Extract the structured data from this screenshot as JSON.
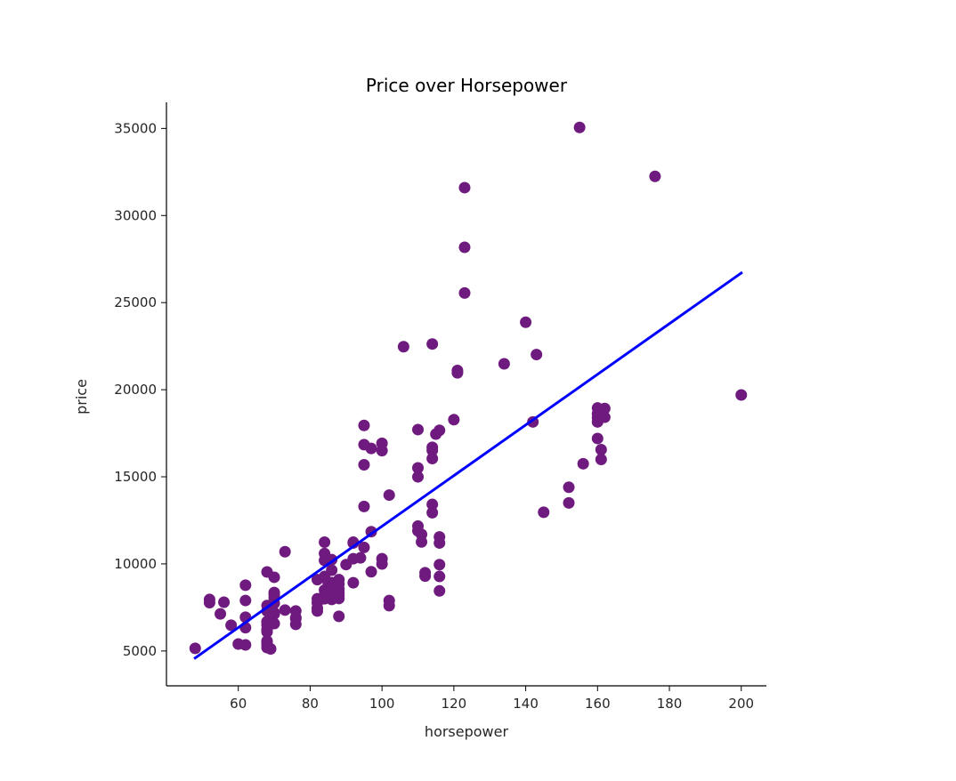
{
  "chart_data": {
    "type": "scatter",
    "title": "Price over Horsepower",
    "xlabel": "horsepower",
    "ylabel": "price",
    "xlim": [
      40,
      207
    ],
    "ylim": [
      3000,
      36500
    ],
    "xticks": [
      60,
      80,
      100,
      120,
      140,
      160,
      180,
      200
    ],
    "yticks": [
      5000,
      10000,
      15000,
      20000,
      25000,
      30000,
      35000
    ],
    "grid": false,
    "point_color": "#6f1a7e",
    "line_color": "#0000ff",
    "points": [
      [
        48,
        5151
      ],
      [
        52,
        7957
      ],
      [
        52,
        7775
      ],
      [
        55,
        7129
      ],
      [
        56,
        7799
      ],
      [
        58,
        6479
      ],
      [
        60,
        5399
      ],
      [
        62,
        5348
      ],
      [
        62,
        6338
      ],
      [
        62,
        6938
      ],
      [
        62,
        7898
      ],
      [
        62,
        8778
      ],
      [
        68,
        5195
      ],
      [
        68,
        5389
      ],
      [
        68,
        5499
      ],
      [
        68,
        5572
      ],
      [
        68,
        6095
      ],
      [
        68,
        6229
      ],
      [
        68,
        6488
      ],
      [
        68,
        6669
      ],
      [
        68,
        6692
      ],
      [
        68,
        7295
      ],
      [
        68,
        7609
      ],
      [
        68,
        9538
      ],
      [
        69,
        5118
      ],
      [
        69,
        6649
      ],
      [
        69,
        6795
      ],
      [
        69,
        6849
      ],
      [
        69,
        7053
      ],
      [
        70,
        6575
      ],
      [
        70,
        7126
      ],
      [
        70,
        7198
      ],
      [
        70,
        7738
      ],
      [
        70,
        8058
      ],
      [
        70,
        8238
      ],
      [
        70,
        9233
      ],
      [
        70,
        8358
      ],
      [
        73,
        7349
      ],
      [
        73,
        10698
      ],
      [
        76,
        6855
      ],
      [
        76,
        6918
      ],
      [
        76,
        7299
      ],
      [
        76,
        6529
      ],
      [
        82,
        7295
      ],
      [
        82,
        7463
      ],
      [
        82,
        7775
      ],
      [
        82,
        7995
      ],
      [
        82,
        9095
      ],
      [
        84,
        7999
      ],
      [
        84,
        8189
      ],
      [
        84,
        8495
      ],
      [
        84,
        9279
      ],
      [
        84,
        10198
      ],
      [
        84,
        10595
      ],
      [
        84,
        11248
      ],
      [
        85,
        8449
      ],
      [
        85,
        8499
      ],
      [
        85,
        8948
      ],
      [
        86,
        7957
      ],
      [
        86,
        8249
      ],
      [
        86,
        8845
      ],
      [
        86,
        8921
      ],
      [
        86,
        9639
      ],
      [
        86,
        10245
      ],
      [
        88,
        6989
      ],
      [
        88,
        8013
      ],
      [
        88,
        8195
      ],
      [
        88,
        8358
      ],
      [
        88,
        8558
      ],
      [
        88,
        8845
      ],
      [
        88,
        9095
      ],
      [
        90,
        9960
      ],
      [
        92,
        8916
      ],
      [
        92,
        10295
      ],
      [
        92,
        11199
      ],
      [
        92,
        11245
      ],
      [
        94,
        10345
      ],
      [
        95,
        10945
      ],
      [
        95,
        13295
      ],
      [
        95,
        15690
      ],
      [
        95,
        16845
      ],
      [
        95,
        17950
      ],
      [
        97,
        9549
      ],
      [
        97,
        11850
      ],
      [
        97,
        16630
      ],
      [
        100,
        9995
      ],
      [
        100,
        10295
      ],
      [
        100,
        16500
      ],
      [
        100,
        16925
      ],
      [
        102,
        7603
      ],
      [
        102,
        7895
      ],
      [
        102,
        13950
      ],
      [
        106,
        22470
      ],
      [
        110,
        11900
      ],
      [
        110,
        12170
      ],
      [
        110,
        14997
      ],
      [
        110,
        15510
      ],
      [
        110,
        17710
      ],
      [
        111,
        11259
      ],
      [
        111,
        11694
      ],
      [
        112,
        9298
      ],
      [
        112,
        9495
      ],
      [
        114,
        12940
      ],
      [
        114,
        13415
      ],
      [
        114,
        16049
      ],
      [
        114,
        16515
      ],
      [
        114,
        16695
      ],
      [
        114,
        22625
      ],
      [
        115,
        17450
      ],
      [
        116,
        8449
      ],
      [
        116,
        9279
      ],
      [
        116,
        9959
      ],
      [
        116,
        11199
      ],
      [
        116,
        11549
      ],
      [
        116,
        17669
      ],
      [
        120,
        18280
      ],
      [
        121,
        20970
      ],
      [
        121,
        21105
      ],
      [
        123,
        25552
      ],
      [
        123,
        28176
      ],
      [
        123,
        31600
      ],
      [
        134,
        21485
      ],
      [
        140,
        23875
      ],
      [
        142,
        18150
      ],
      [
        143,
        22018
      ],
      [
        145,
        12964
      ],
      [
        152,
        13499
      ],
      [
        152,
        14399
      ],
      [
        155,
        35056
      ],
      [
        156,
        15750
      ],
      [
        160,
        17199
      ],
      [
        160,
        18150
      ],
      [
        160,
        18399
      ],
      [
        160,
        18620
      ],
      [
        160,
        18950
      ],
      [
        161,
        16558
      ],
      [
        161,
        15998
      ],
      [
        162,
        18420
      ],
      [
        162,
        18920
      ],
      [
        176,
        32250
      ],
      [
        200,
        19699
      ]
    ],
    "regression_line": {
      "x": [
        48,
        200
      ],
      "y": [
        4600,
        26700
      ]
    }
  }
}
